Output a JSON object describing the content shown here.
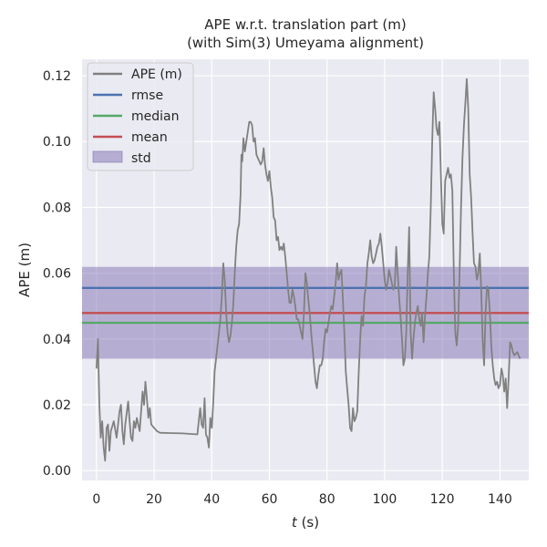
{
  "chart_data": {
    "type": "line",
    "title": "APE w.r.t. translation part (m)",
    "subtitle": "(with Sim(3) Umeyama alignment)",
    "xlabel_var": "t",
    "xlabel_unit": " (s)",
    "ylabel": "APE (m)",
    "xlim": [
      -5,
      150
    ],
    "ylim": [
      -0.003,
      0.125
    ],
    "xticks": [
      0,
      20,
      40,
      60,
      80,
      100,
      120,
      140
    ],
    "yticks": [
      0.0,
      0.02,
      0.04,
      0.06,
      0.08,
      0.1,
      0.12
    ],
    "xtick_labels": [
      "0",
      "20",
      "40",
      "60",
      "80",
      "100",
      "120",
      "140"
    ],
    "ytick_labels": [
      "0.00",
      "0.02",
      "0.04",
      "0.06",
      "0.08",
      "0.10",
      "0.12"
    ],
    "grid": true,
    "legend_position": "top-left",
    "legend": [
      {
        "label": "APE (m)",
        "kind": "line",
        "color": "#808080"
      },
      {
        "label": "rmse",
        "kind": "line",
        "color": "#4c72b0"
      },
      {
        "label": "median",
        "kind": "line",
        "color": "#55a868"
      },
      {
        "label": "mean",
        "kind": "line",
        "color": "#c44e52"
      },
      {
        "label": "std",
        "kind": "patch",
        "color": "#8172b2"
      }
    ],
    "stats": {
      "rmse": 0.0555,
      "median": 0.0449,
      "mean": 0.0479,
      "std_low": 0.034,
      "std_high": 0.0619
    },
    "series": [
      {
        "name": "APE (m)",
        "color": "#808080",
        "points": [
          [
            0.0,
            0.031
          ],
          [
            0.5,
            0.04
          ],
          [
            1.0,
            0.02
          ],
          [
            1.5,
            0.01
          ],
          [
            2.0,
            0.015
          ],
          [
            2.5,
            0.007
          ],
          [
            3.0,
            0.003
          ],
          [
            3.5,
            0.013
          ],
          [
            4.0,
            0.014
          ],
          [
            4.5,
            0.006
          ],
          [
            5.0,
            0.012
          ],
          [
            6.0,
            0.015
          ],
          [
            7.0,
            0.01
          ],
          [
            8.0,
            0.018
          ],
          [
            8.5,
            0.02
          ],
          [
            9.0,
            0.012
          ],
          [
            9.5,
            0.008
          ],
          [
            10.0,
            0.014
          ],
          [
            11.0,
            0.021
          ],
          [
            11.5,
            0.015
          ],
          [
            12.0,
            0.01
          ],
          [
            12.5,
            0.009
          ],
          [
            13.0,
            0.015
          ],
          [
            13.5,
            0.013
          ],
          [
            14.0,
            0.016
          ],
          [
            15.0,
            0.012
          ],
          [
            16.0,
            0.024
          ],
          [
            16.5,
            0.02
          ],
          [
            17.0,
            0.027
          ],
          [
            17.5,
            0.022
          ],
          [
            18.0,
            0.016
          ],
          [
            18.5,
            0.019
          ],
          [
            19.0,
            0.014
          ],
          [
            20.0,
            0.013
          ],
          [
            21.0,
            0.012
          ],
          [
            22.0,
            0.0115
          ],
          [
            25.0,
            0.0114
          ],
          [
            30.0,
            0.0113
          ],
          [
            35.0,
            0.011
          ],
          [
            35.5,
            0.015
          ],
          [
            36.0,
            0.019
          ],
          [
            36.5,
            0.014
          ],
          [
            37.0,
            0.013
          ],
          [
            37.5,
            0.022
          ],
          [
            38.0,
            0.011
          ],
          [
            38.5,
            0.01
          ],
          [
            39.0,
            0.007
          ],
          [
            39.5,
            0.016
          ],
          [
            40.0,
            0.013
          ],
          [
            40.5,
            0.02
          ],
          [
            41.0,
            0.03
          ],
          [
            41.5,
            0.034
          ],
          [
            42.0,
            0.038
          ],
          [
            42.5,
            0.042
          ],
          [
            43.0,
            0.046
          ],
          [
            43.5,
            0.053
          ],
          [
            44.0,
            0.063
          ],
          [
            44.5,
            0.058
          ],
          [
            45.0,
            0.048
          ],
          [
            45.5,
            0.042
          ],
          [
            46.0,
            0.039
          ],
          [
            46.5,
            0.041
          ],
          [
            47.0,
            0.045
          ],
          [
            47.5,
            0.051
          ],
          [
            48.0,
            0.06
          ],
          [
            48.5,
            0.068
          ],
          [
            49.0,
            0.073
          ],
          [
            49.5,
            0.075
          ],
          [
            50.0,
            0.084
          ],
          [
            50.3,
            0.096
          ],
          [
            50.6,
            0.094
          ],
          [
            51.0,
            0.101
          ],
          [
            51.5,
            0.097
          ],
          [
            52.0,
            0.1
          ],
          [
            52.5,
            0.103
          ],
          [
            53.0,
            0.106
          ],
          [
            53.5,
            0.106
          ],
          [
            54.0,
            0.105
          ],
          [
            54.5,
            0.1
          ],
          [
            55.0,
            0.101
          ],
          [
            55.5,
            0.096
          ],
          [
            56.0,
            0.095
          ],
          [
            56.5,
            0.094
          ],
          [
            57.0,
            0.093
          ],
          [
            57.5,
            0.094
          ],
          [
            58.0,
            0.098
          ],
          [
            58.5,
            0.093
          ],
          [
            59.0,
            0.09
          ],
          [
            59.5,
            0.088
          ],
          [
            60.0,
            0.091
          ],
          [
            60.5,
            0.086
          ],
          [
            61.0,
            0.083
          ],
          [
            61.5,
            0.077
          ],
          [
            62.0,
            0.076
          ],
          [
            62.5,
            0.07
          ],
          [
            63.0,
            0.071
          ],
          [
            63.5,
            0.067
          ],
          [
            64.0,
            0.068
          ],
          [
            64.5,
            0.067
          ],
          [
            65.0,
            0.069
          ],
          [
            65.5,
            0.065
          ],
          [
            66.0,
            0.06
          ],
          [
            66.5,
            0.055
          ],
          [
            67.0,
            0.051
          ],
          [
            67.5,
            0.051
          ],
          [
            68.0,
            0.055
          ],
          [
            68.5,
            0.053
          ],
          [
            69.0,
            0.05
          ],
          [
            69.5,
            0.046
          ],
          [
            70.0,
            0.046
          ],
          [
            70.5,
            0.044
          ],
          [
            71.0,
            0.042
          ],
          [
            71.5,
            0.04
          ],
          [
            72.0,
            0.048
          ],
          [
            72.5,
            0.06
          ],
          [
            73.0,
            0.057
          ],
          [
            73.5,
            0.052
          ],
          [
            74.0,
            0.048
          ],
          [
            74.5,
            0.042
          ],
          [
            75.0,
            0.037
          ],
          [
            75.5,
            0.032
          ],
          [
            76.0,
            0.027
          ],
          [
            76.5,
            0.025
          ],
          [
            77.0,
            0.029
          ],
          [
            77.5,
            0.032
          ],
          [
            78.0,
            0.032
          ],
          [
            78.5,
            0.034
          ],
          [
            79.0,
            0.039
          ],
          [
            79.5,
            0.043
          ],
          [
            80.0,
            0.042
          ],
          [
            80.5,
            0.045
          ],
          [
            81.0,
            0.048
          ],
          [
            81.5,
            0.05
          ],
          [
            82.0,
            0.049
          ],
          [
            82.5,
            0.053
          ],
          [
            83.0,
            0.057
          ],
          [
            83.5,
            0.063
          ],
          [
            84.0,
            0.058
          ],
          [
            84.5,
            0.06
          ],
          [
            85.0,
            0.061
          ],
          [
            85.5,
            0.052
          ],
          [
            86.0,
            0.042
          ],
          [
            86.5,
            0.03
          ],
          [
            87.0,
            0.025
          ],
          [
            87.5,
            0.02
          ],
          [
            88.0,
            0.013
          ],
          [
            88.5,
            0.012
          ],
          [
            89.0,
            0.019
          ],
          [
            89.5,
            0.015
          ],
          [
            90.0,
            0.016
          ],
          [
            90.5,
            0.018
          ],
          [
            91.0,
            0.03
          ],
          [
            91.5,
            0.04
          ],
          [
            92.0,
            0.047
          ],
          [
            92.5,
            0.044
          ],
          [
            93.0,
            0.053
          ],
          [
            93.5,
            0.056
          ],
          [
            94.0,
            0.063
          ],
          [
            94.5,
            0.066
          ],
          [
            95.0,
            0.07
          ],
          [
            95.5,
            0.065
          ],
          [
            96.0,
            0.063
          ],
          [
            96.5,
            0.064
          ],
          [
            97.0,
            0.066
          ],
          [
            97.5,
            0.068
          ],
          [
            98.0,
            0.069
          ],
          [
            98.5,
            0.072
          ],
          [
            99.0,
            0.068
          ],
          [
            99.5,
            0.063
          ],
          [
            100.0,
            0.058
          ],
          [
            100.5,
            0.055
          ],
          [
            101.0,
            0.057
          ],
          [
            101.5,
            0.061
          ],
          [
            102.0,
            0.059
          ],
          [
            102.5,
            0.057
          ],
          [
            103.0,
            0.055
          ],
          [
            103.5,
            0.056
          ],
          [
            104.0,
            0.068
          ],
          [
            104.5,
            0.06
          ],
          [
            105.0,
            0.053
          ],
          [
            105.5,
            0.047
          ],
          [
            106.0,
            0.04
          ],
          [
            106.5,
            0.032
          ],
          [
            107.0,
            0.034
          ],
          [
            107.5,
            0.042
          ],
          [
            108.0,
            0.06
          ],
          [
            108.5,
            0.074
          ],
          [
            109.0,
            0.042
          ],
          [
            109.5,
            0.034
          ],
          [
            110.0,
            0.04
          ],
          [
            110.5,
            0.045
          ],
          [
            111.0,
            0.048
          ],
          [
            111.5,
            0.05
          ],
          [
            112.0,
            0.046
          ],
          [
            112.5,
            0.044
          ],
          [
            113.0,
            0.048
          ],
          [
            113.5,
            0.039
          ],
          [
            114.0,
            0.047
          ],
          [
            114.5,
            0.053
          ],
          [
            115.0,
            0.06
          ],
          [
            115.5,
            0.065
          ],
          [
            116.0,
            0.08
          ],
          [
            116.5,
            0.1
          ],
          [
            117.0,
            0.115
          ],
          [
            117.5,
            0.11
          ],
          [
            118.0,
            0.104
          ],
          [
            118.5,
            0.102
          ],
          [
            119.0,
            0.106
          ],
          [
            119.5,
            0.09
          ],
          [
            120.0,
            0.075
          ],
          [
            120.5,
            0.072
          ],
          [
            121.0,
            0.088
          ],
          [
            121.5,
            0.09
          ],
          [
            122.0,
            0.092
          ],
          [
            122.5,
            0.089
          ],
          [
            123.0,
            0.09
          ],
          [
            123.5,
            0.085
          ],
          [
            124.0,
            0.06
          ],
          [
            124.5,
            0.042
          ],
          [
            125.0,
            0.038
          ],
          [
            125.5,
            0.044
          ],
          [
            126.0,
            0.06
          ],
          [
            126.5,
            0.08
          ],
          [
            127.0,
            0.095
          ],
          [
            127.5,
            0.105
          ],
          [
            128.0,
            0.112
          ],
          [
            128.5,
            0.119
          ],
          [
            129.0,
            0.11
          ],
          [
            129.5,
            0.09
          ],
          [
            130.0,
            0.083
          ],
          [
            130.5,
            0.072
          ],
          [
            131.0,
            0.063
          ],
          [
            131.5,
            0.062
          ],
          [
            132.0,
            0.058
          ],
          [
            132.5,
            0.06
          ],
          [
            133.0,
            0.066
          ],
          [
            133.5,
            0.055
          ],
          [
            134.0,
            0.04
          ],
          [
            134.5,
            0.032
          ],
          [
            135.0,
            0.048
          ],
          [
            135.5,
            0.056
          ],
          [
            136.0,
            0.055
          ],
          [
            136.5,
            0.048
          ],
          [
            137.0,
            0.038
          ],
          [
            137.5,
            0.032
          ],
          [
            138.0,
            0.028
          ],
          [
            138.5,
            0.026
          ],
          [
            139.0,
            0.027
          ],
          [
            139.5,
            0.025
          ],
          [
            140.0,
            0.026
          ],
          [
            140.5,
            0.031
          ],
          [
            141.0,
            0.029
          ],
          [
            141.5,
            0.024
          ],
          [
            142.0,
            0.028
          ],
          [
            142.5,
            0.019
          ],
          [
            143.0,
            0.028
          ],
          [
            143.5,
            0.039
          ],
          [
            144.0,
            0.038
          ],
          [
            144.5,
            0.036
          ],
          [
            145.0,
            0.035
          ],
          [
            146.0,
            0.036
          ],
          [
            147.0,
            0.034
          ]
        ]
      }
    ]
  }
}
